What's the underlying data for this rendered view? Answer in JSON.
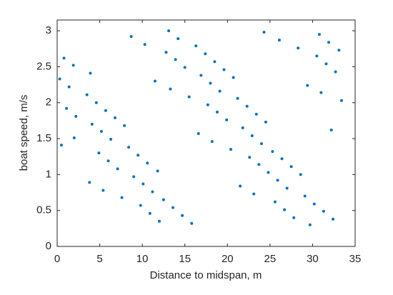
{
  "chart_data": {
    "type": "scatter",
    "xlabel": "Distance to midspan, m",
    "ylabel": "boat speed, m/s",
    "color": "#0072bd",
    "xlim": [
      0,
      35
    ],
    "xticks": [
      0,
      5,
      10,
      15,
      20,
      25,
      30,
      35
    ],
    "ylim": [
      0,
      3.15
    ],
    "yticks": [
      0,
      0.5,
      1,
      1.5,
      2,
      2.5,
      3
    ],
    "x": [
      20.7,
      7.9,
      28.6,
      15.8,
      3.9,
      24.5,
      11.8,
      32.4,
      19.6,
      6.8,
      27.5,
      14.7,
      1.9,
      23.4,
      10.6,
      31.3,
      18.5,
      5.7,
      26.4,
      13.6,
      0.8,
      22.3,
      9.5,
      30.2,
      17.4,
      4.6,
      25.3,
      12.5,
      33.1,
      21.2,
      8.4,
      29.1,
      16.3,
      3.5,
      24.0,
      11.2,
      31.9,
      19.1,
      6.3,
      27.0,
      14.2,
      1.4,
      22.9,
      10.1,
      30.8,
      18.0,
      5.2,
      25.9,
      13.1,
      0.3,
      21.8,
      9.0,
      29.7,
      16.9,
      4.1,
      24.8,
      12.0,
      32.7,
      19.9,
      7.1,
      27.8,
      15.0,
      2.2,
      23.7,
      10.9,
      31.6,
      18.8,
      6.0,
      26.7,
      13.9,
      1.1,
      22.6,
      9.8,
      30.5,
      17.7,
      4.9,
      25.6,
      12.8,
      33.4,
      20.4,
      7.6,
      28.3,
      15.5,
      0.5,
      23.1,
      10.3,
      31.0,
      18.2,
      5.4,
      26.1,
      13.3,
      2.0,
      21.5,
      8.7,
      29.4,
      16.6,
      3.8,
      24.3,
      11.5,
      32.2
    ],
    "values": [
      2.35,
      1.68,
      1.0,
      0.32,
      2.41,
      1.73,
      1.05,
      0.38,
      2.46,
      1.79,
      1.11,
      0.43,
      2.52,
      1.84,
      1.16,
      0.49,
      2.57,
      1.89,
      1.22,
      0.54,
      2.62,
      1.95,
      1.27,
      0.59,
      2.68,
      2.0,
      1.32,
      0.65,
      2.73,
      2.06,
      1.38,
      0.7,
      2.79,
      2.11,
      1.43,
      0.76,
      2.84,
      2.16,
      1.49,
      0.81,
      2.89,
      2.22,
      1.54,
      0.87,
      2.95,
      2.27,
      1.6,
      0.92,
      3.0,
      2.33,
      1.65,
      0.97,
      0.3,
      2.38,
      1.7,
      1.03,
      0.35,
      2.43,
      1.76,
      1.08,
      0.4,
      2.49,
      1.81,
      1.14,
      0.46,
      2.54,
      1.87,
      1.19,
      0.51,
      2.6,
      1.92,
      1.24,
      0.57,
      2.65,
      1.97,
      1.3,
      0.62,
      2.7,
      2.03,
      1.35,
      0.68,
      2.76,
      2.08,
      1.41,
      0.73,
      2.81,
      2.14,
      1.46,
      0.78,
      2.87,
      2.19,
      1.51,
      0.84,
      2.92,
      2.24,
      1.57,
      0.89,
      2.98,
      2.3,
      1.62
    ]
  }
}
